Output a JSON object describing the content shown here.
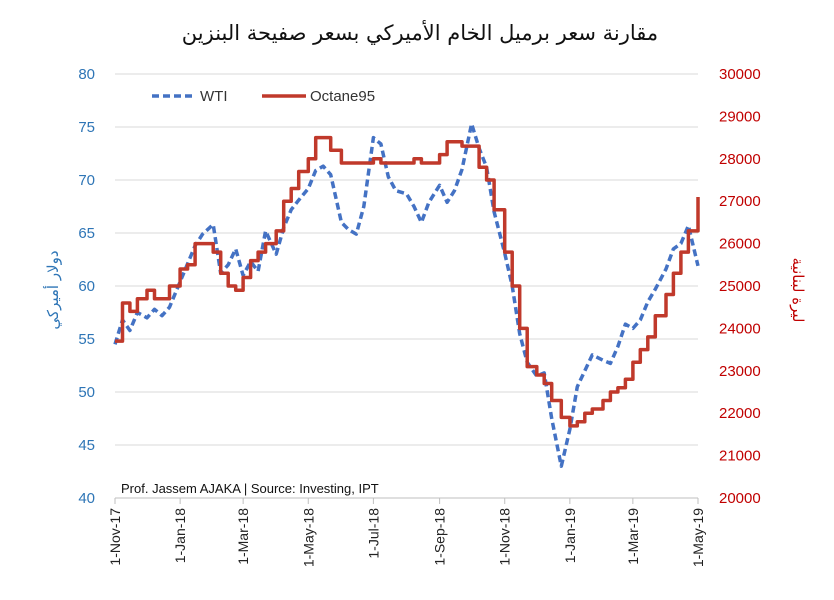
{
  "chart_data": {
    "type": "line",
    "title": "مقارنة سعر برميل الخام الأميركي بسعر صفيحة البنزين",
    "ylabel_left": "دولار أميركي",
    "ylabel_right": "ليرة لبنانية",
    "note": "Prof. Jassem AJAKA | Source: Investing, IPT",
    "x_ticks": [
      "1-Nov-17",
      "1-Jan-18",
      "1-Mar-18",
      "1-May-18",
      "1-Jul-18",
      "1-Sep-18",
      "1-Nov-18",
      "1-Jan-19",
      "1-Mar-19",
      "1-May-19"
    ],
    "xlim": [
      "2017-11-01",
      "2019-05-01"
    ],
    "ylim_left": [
      40,
      80
    ],
    "yticks_left": [
      40,
      45,
      50,
      55,
      60,
      65,
      70,
      75,
      80
    ],
    "ylim_right": [
      20000,
      30000
    ],
    "yticks_right": [
      20000,
      21000,
      22000,
      23000,
      24000,
      25000,
      26000,
      27000,
      28000,
      29000,
      30000
    ],
    "grid": "horizontal",
    "legend": "top-left",
    "colors": {
      "WTI": "#4472c4",
      "Octane95": "#c0392b"
    },
    "series": [
      {
        "name": "WTI",
        "axis": "left",
        "style": "dashed",
        "x": [
          "2017-11-01",
          "2017-11-08",
          "2017-11-15",
          "2017-11-22",
          "2017-12-01",
          "2017-12-08",
          "2017-12-15",
          "2017-12-22",
          "2018-01-01",
          "2018-01-08",
          "2018-01-15",
          "2018-01-22",
          "2018-02-01",
          "2018-02-08",
          "2018-02-15",
          "2018-02-22",
          "2018-03-01",
          "2018-03-08",
          "2018-03-15",
          "2018-03-22",
          "2018-04-01",
          "2018-04-08",
          "2018-04-15",
          "2018-04-22",
          "2018-05-01",
          "2018-05-08",
          "2018-05-15",
          "2018-05-22",
          "2018-06-01",
          "2018-06-08",
          "2018-06-15",
          "2018-06-22",
          "2018-07-01",
          "2018-07-08",
          "2018-07-15",
          "2018-07-22",
          "2018-08-01",
          "2018-08-08",
          "2018-08-15",
          "2018-08-22",
          "2018-09-01",
          "2018-09-08",
          "2018-09-15",
          "2018-09-22",
          "2018-10-01",
          "2018-10-08",
          "2018-10-15",
          "2018-10-22",
          "2018-11-01",
          "2018-11-08",
          "2018-11-15",
          "2018-11-22",
          "2018-12-01",
          "2018-12-08",
          "2018-12-15",
          "2018-12-24",
          "2019-01-01",
          "2019-01-08",
          "2019-01-15",
          "2019-01-22",
          "2019-02-01",
          "2019-02-08",
          "2019-02-15",
          "2019-02-22",
          "2019-03-01",
          "2019-03-08",
          "2019-03-15",
          "2019-03-22",
          "2019-04-01",
          "2019-04-08",
          "2019-04-15",
          "2019-04-22",
          "2019-05-01"
        ],
        "values": [
          54.5,
          56.8,
          55.8,
          57.5,
          57.0,
          57.8,
          57.2,
          58.0,
          60.4,
          62.1,
          63.8,
          64.9,
          65.8,
          61.2,
          62.0,
          63.5,
          61.0,
          62.3,
          61.4,
          65.2,
          63.0,
          65.5,
          67.2,
          68.1,
          69.2,
          70.9,
          71.3,
          70.5,
          66.0,
          65.3,
          64.9,
          67.5,
          74.0,
          73.4,
          70.3,
          69.0,
          68.7,
          67.5,
          66.0,
          67.9,
          69.5,
          67.9,
          69.0,
          71.0,
          75.3,
          73.0,
          71.2,
          67.0,
          63.1,
          60.0,
          55.5,
          52.8,
          51.5,
          51.8,
          47.5,
          43.0,
          46.5,
          50.5,
          52.0,
          53.5,
          53.0,
          52.7,
          54.3,
          56.4,
          56.0,
          56.8,
          58.5,
          59.7,
          61.6,
          63.5,
          64.0,
          65.7,
          61.9
        ]
      },
      {
        "name": "Octane95",
        "axis": "right",
        "style": "solid",
        "x": [
          "2017-11-01",
          "2017-11-08",
          "2017-11-15",
          "2017-11-22",
          "2017-12-01",
          "2017-12-08",
          "2017-12-15",
          "2017-12-22",
          "2018-01-01",
          "2018-01-08",
          "2018-01-15",
          "2018-01-22",
          "2018-02-01",
          "2018-02-08",
          "2018-02-15",
          "2018-02-22",
          "2018-03-01",
          "2018-03-08",
          "2018-03-15",
          "2018-03-22",
          "2018-04-01",
          "2018-04-08",
          "2018-04-15",
          "2018-04-22",
          "2018-05-01",
          "2018-05-08",
          "2018-05-15",
          "2018-05-22",
          "2018-06-01",
          "2018-06-08",
          "2018-06-15",
          "2018-06-22",
          "2018-07-01",
          "2018-07-08",
          "2018-07-15",
          "2018-07-22",
          "2018-08-01",
          "2018-08-08",
          "2018-08-15",
          "2018-08-22",
          "2018-09-01",
          "2018-09-08",
          "2018-09-15",
          "2018-09-22",
          "2018-10-01",
          "2018-10-08",
          "2018-10-15",
          "2018-10-22",
          "2018-11-01",
          "2018-11-08",
          "2018-11-15",
          "2018-11-22",
          "2018-12-01",
          "2018-12-08",
          "2018-12-15",
          "2018-12-24",
          "2019-01-01",
          "2019-01-08",
          "2019-01-15",
          "2019-01-22",
          "2019-02-01",
          "2019-02-08",
          "2019-02-15",
          "2019-02-22",
          "2019-03-01",
          "2019-03-08",
          "2019-03-15",
          "2019-03-22",
          "2019-04-01",
          "2019-04-08",
          "2019-04-15",
          "2019-04-22",
          "2019-05-01"
        ],
        "values": [
          23700,
          24600,
          24400,
          24700,
          24900,
          24700,
          24700,
          25000,
          25400,
          25500,
          26000,
          26000,
          25800,
          25300,
          25000,
          24900,
          25200,
          25600,
          25800,
          26000,
          26300,
          27000,
          27300,
          27700,
          28000,
          28500,
          28500,
          28200,
          27900,
          27900,
          27900,
          27900,
          28000,
          27900,
          27900,
          27900,
          27900,
          28000,
          27900,
          27900,
          28100,
          28400,
          28400,
          28300,
          28300,
          27800,
          27500,
          26800,
          25800,
          25000,
          24000,
          23100,
          22900,
          22700,
          22300,
          21900,
          21700,
          21800,
          22000,
          22100,
          22300,
          22500,
          22600,
          22800,
          23200,
          23500,
          23800,
          24300,
          24800,
          25300,
          25800,
          26300,
          27100
        ]
      }
    ]
  }
}
